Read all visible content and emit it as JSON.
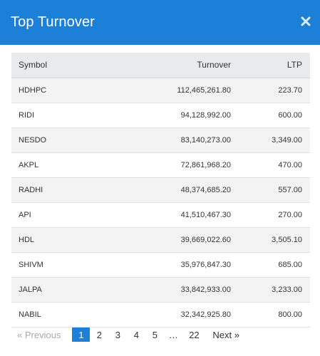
{
  "modal": {
    "title": "Top Turnover",
    "close_icon": "close-icon",
    "accent_color": "#1c80d9"
  },
  "table": {
    "headers": {
      "symbol": "Symbol",
      "turnover": "Turnover",
      "ltp": "LTP"
    },
    "rows": [
      {
        "symbol": "HDHPC",
        "turnover": "112,465,261.80",
        "ltp": "223.70"
      },
      {
        "symbol": "RIDI",
        "turnover": "94,128,992.00",
        "ltp": "600.00"
      },
      {
        "symbol": "NESDO",
        "turnover": "83,140,273.00",
        "ltp": "3,349.00"
      },
      {
        "symbol": "AKPL",
        "turnover": "72,861,968.20",
        "ltp": "470.00"
      },
      {
        "symbol": "RADHI",
        "turnover": "48,374,685.20",
        "ltp": "557.00"
      },
      {
        "symbol": "API",
        "turnover": "41,510,467.30",
        "ltp": "270.00"
      },
      {
        "symbol": "HDL",
        "turnover": "39,669,022.60",
        "ltp": "3,505.10"
      },
      {
        "symbol": "SHIVM",
        "turnover": "35,976,847.30",
        "ltp": "685.00"
      },
      {
        "symbol": "JALPA",
        "turnover": "33,842,933.00",
        "ltp": "3,233.00"
      },
      {
        "symbol": "NABIL",
        "turnover": "32,342,925.80",
        "ltp": "800.00"
      }
    ]
  },
  "pagination": {
    "prev_label": "« Previous",
    "pages": [
      "1",
      "2",
      "3",
      "4",
      "5"
    ],
    "ellipsis": "…",
    "last_page": "22",
    "next_label": "Next »",
    "current_page": "1"
  }
}
